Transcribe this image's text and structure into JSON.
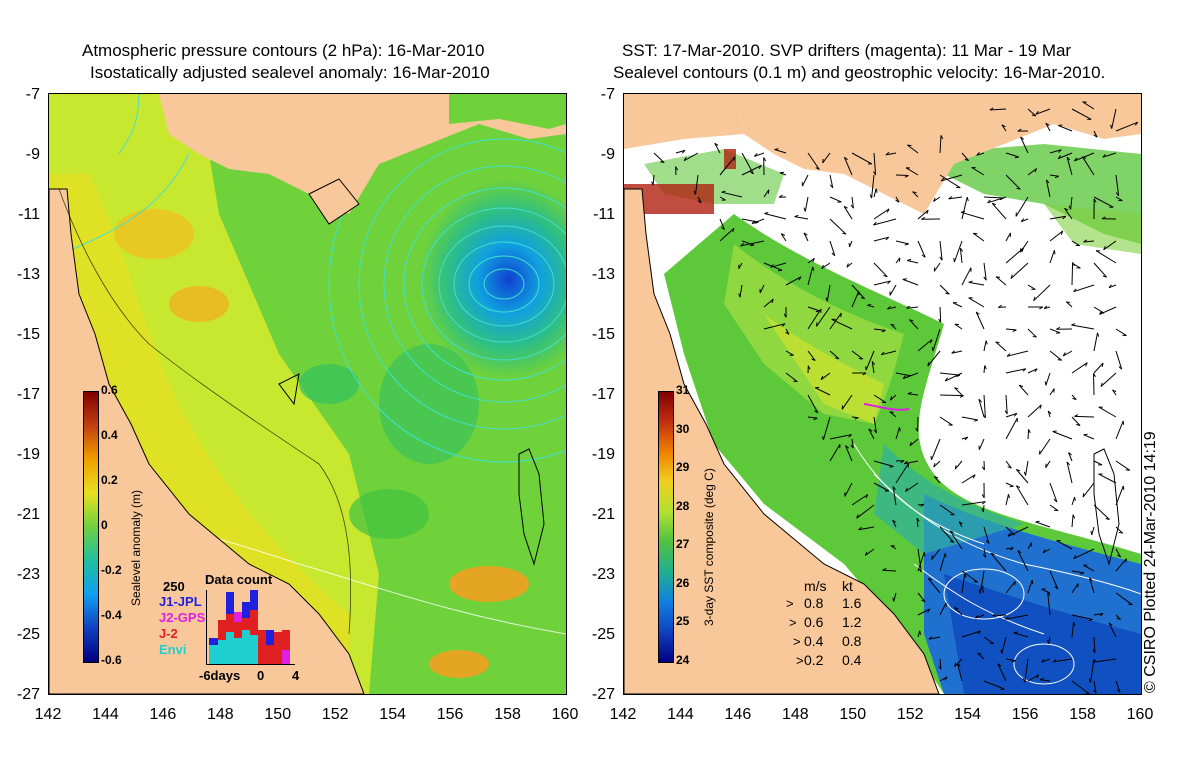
{
  "left_panel": {
    "title_line1": "Atmospheric pressure contours (2 hPa): 16-Mar-2010",
    "title_line2": "Isostatically adjusted sealevel anomaly: 16-Mar-2010",
    "colorbar": {
      "title": "Sealevel anomaly (m)",
      "ticks": [
        "0.6",
        "0.4",
        "0.2",
        "0",
        "-0.2",
        "-0.4",
        "-0.6"
      ]
    },
    "data_count": {
      "title": "Data count",
      "max_label": "250",
      "legend": [
        {
          "label": "J1-JPL",
          "color": "#2020e0"
        },
        {
          "label": "J2-GPS",
          "color": "#e020e0"
        },
        {
          "label": "J-2",
          "color": "#e02020"
        },
        {
          "label": "Envi",
          "color": "#20d0d0"
        }
      ],
      "xaxis": [
        "-6days",
        "0",
        "4"
      ]
    }
  },
  "right_panel": {
    "title_line1": "SST: 17-Mar-2010. SVP drifters (magenta): 11 Mar - 19 Mar",
    "title_line2": "Sealevel contours (0.1 m) and geostrophic velocity: 16-Mar-2010.",
    "colorbar": {
      "title": "3-day SST composite (deg C)",
      "ticks": [
        "31",
        "30",
        "29",
        "28",
        "27",
        "26",
        "25",
        "24"
      ]
    },
    "velocity_legend": {
      "header_ms": "m/s",
      "header_kt": "kt",
      "rows": [
        {
          "ms": "0.8",
          "kt": "1.6"
        },
        {
          "ms": "0.6",
          "kt": "1.2"
        },
        {
          "ms": "0.4",
          "kt": "0.8"
        },
        {
          "ms": "0.2",
          "kt": "0.4"
        }
      ]
    }
  },
  "axes": {
    "y_ticks": [
      "-7",
      "-9",
      "-11",
      "-13",
      "-15",
      "-17",
      "-19",
      "-21",
      "-23",
      "-25",
      "-27"
    ],
    "x_ticks": [
      "142",
      "144",
      "146",
      "148",
      "150",
      "152",
      "154",
      "156",
      "158",
      "160"
    ]
  },
  "copyright": "© CSIRO Plotted 24-Mar-2010 14:19",
  "colors": {
    "land": "#f9c89a",
    "ocean_mid": "#7ddc2a",
    "cloud": "#ffffff",
    "pressure_contour": "#40e0d0"
  }
}
